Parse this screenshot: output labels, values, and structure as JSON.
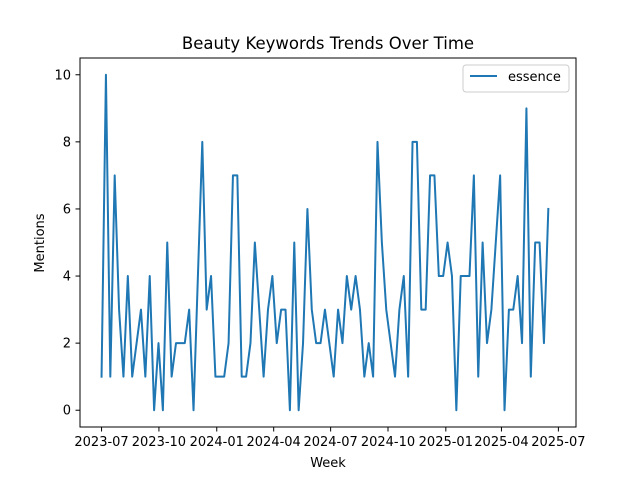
{
  "chart_data": {
    "type": "line",
    "title": "Beauty Keywords Trends Over Time",
    "xlabel": "Week",
    "ylabel": "Mentions",
    "xlim": [
      -4.92,
      108.32
    ],
    "ylim": [
      -0.5,
      10.5
    ],
    "x_ticks": [
      {
        "pos": 0,
        "label": "2023-07"
      },
      {
        "pos": 13.1,
        "label": "2023-10"
      },
      {
        "pos": 26.3,
        "label": "2024-01"
      },
      {
        "pos": 39.3,
        "label": "2024-04"
      },
      {
        "pos": 52.3,
        "label": "2024-07"
      },
      {
        "pos": 65.4,
        "label": "2024-10"
      },
      {
        "pos": 78.6,
        "label": "2025-01"
      },
      {
        "pos": 91.3,
        "label": "2025-04"
      },
      {
        "pos": 104.3,
        "label": "2025-07"
      }
    ],
    "y_ticks": [
      0,
      2,
      4,
      6,
      8,
      10
    ],
    "legend_position": "top-right",
    "series": [
      {
        "name": "essence",
        "color": "#1f77b4",
        "x_unit": "weeks from 2023-07-02",
        "values": [
          1,
          10,
          1,
          7,
          3,
          1,
          4,
          1,
          2,
          3,
          1,
          4,
          0,
          2,
          0,
          5,
          1,
          2,
          2,
          2,
          3,
          0,
          4,
          8,
          3,
          4,
          1,
          1,
          1,
          2,
          7,
          7,
          1,
          1,
          2,
          5,
          3,
          1,
          3,
          4,
          2,
          3,
          3,
          0,
          5,
          0,
          2,
          6,
          3,
          2,
          2,
          3,
          2,
          1,
          3,
          2,
          4,
          3,
          4,
          3,
          1,
          2,
          1,
          8,
          5,
          3,
          2,
          1,
          3,
          4,
          1,
          8,
          8,
          3,
          3,
          7,
          7,
          4,
          4,
          5,
          4,
          0,
          4,
          4,
          4,
          7,
          1,
          5,
          2,
          3,
          5,
          7,
          0,
          3,
          3,
          4,
          2,
          9,
          1,
          5,
          5,
          2,
          6
        ]
      }
    ]
  }
}
